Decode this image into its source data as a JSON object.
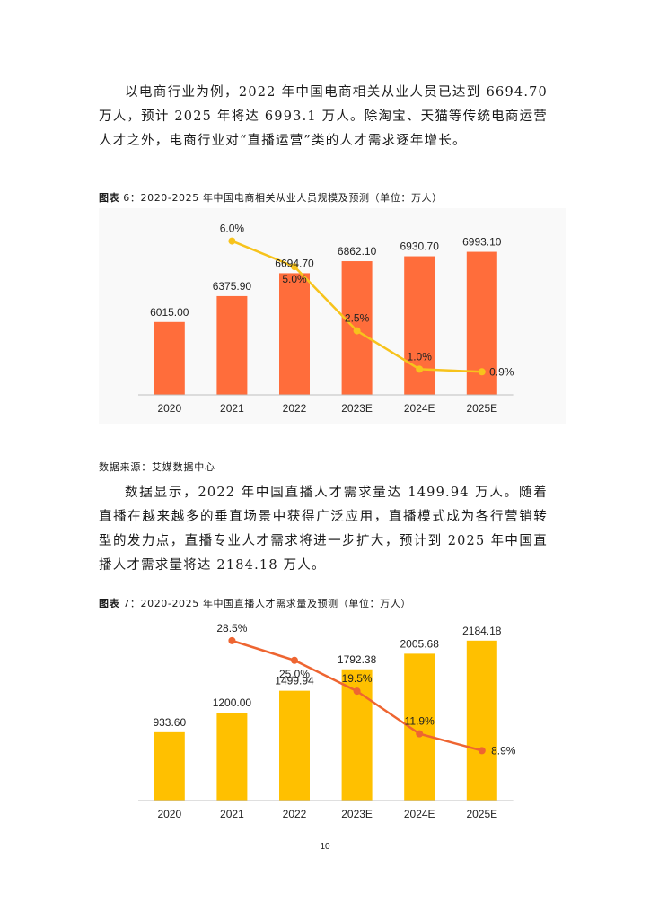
{
  "paragraphs": {
    "p1": "以电商行业为例，2022 年中国电商相关从业人员已达到 6694.70 万人，预计 2025 年将达 6993.1 万人。除淘宝、天猫等传统电商运营人才之外，电商行业对“直播运营”类的人才需求逐年增长。",
    "p2": "数据显示，2022 年中国直播人才需求量达 1499.94 万人。随着直播在越来越多的垂直场景中获得广泛应用，直播模式成为各行营销转型的发力点，直播专业人才需求将进一步扩大，预计到 2025 年中国直播人才需求量将达 2184.18 万人。"
  },
  "captions": {
    "c1_lead": "图表",
    "c1_text": " 6：2020-2025 年中国电商相关从业人员规模及预测（单位：万人）",
    "c2_lead": "图表",
    "c2_text": " 7：2020-2025 年中国直播人才需求量及预测（单位：万人）"
  },
  "source": "数据来源：艾媒数据中心",
  "page_number": "10",
  "colors": {
    "bar_chart_1": "#ff6d3b",
    "line_chart_1": "#f7c31c",
    "bar_chart_2": "#ffc000",
    "line_chart_2": "#ee6531"
  },
  "chart_data": [
    {
      "type": "bar",
      "categories": [
        "2020",
        "2021",
        "2022",
        "2023E",
        "2024E",
        "2025E"
      ],
      "series": [
        {
          "values": [
            6015.0,
            6375.9,
            6694.7,
            6862.1,
            6930.7,
            6993.1
          ],
          "labels": [
            "6015.00",
            "6375.90",
            "6694.70",
            "6862.10",
            "6930.70",
            "6993.10"
          ]
        },
        {
          "type": "line",
          "values": [
            null,
            6.0,
            5.0,
            2.5,
            1.0,
            0.9
          ],
          "labels": [
            "",
            "6.0%",
            "5.0%",
            "2.5%",
            "1.0%",
            "0.9%"
          ]
        }
      ],
      "title": "",
      "xlabel": "",
      "ylabel": "",
      "ylim": [
        5000,
        7200
      ],
      "line_ylim": [
        0,
        7
      ],
      "grid": false,
      "legend": "none"
    },
    {
      "type": "bar",
      "categories": [
        "2020",
        "2021",
        "2022",
        "2023E",
        "2024E",
        "2025E"
      ],
      "series": [
        {
          "values": [
            933.6,
            1200.0,
            1499.94,
            1792.38,
            2005.68,
            2184.18
          ],
          "labels": [
            "933.60",
            "1200.00",
            "1499.94",
            "1792.38",
            "2005.68",
            "2184.18"
          ]
        },
        {
          "type": "line",
          "values": [
            null,
            28.5,
            25.0,
            19.5,
            11.9,
            8.9
          ],
          "labels": [
            "",
            "28.5%",
            "25.0%",
            "19.5%",
            "11.9%",
            "8.9%"
          ]
        }
      ],
      "title": "",
      "xlabel": "",
      "ylabel": "",
      "ylim": [
        0,
        2280
      ],
      "line_ylim": [
        0,
        32
      ],
      "grid": false,
      "legend": "none"
    }
  ]
}
